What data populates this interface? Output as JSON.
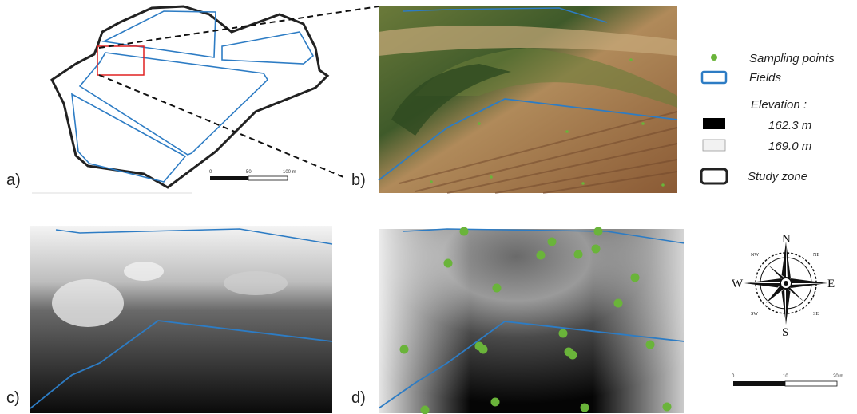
{
  "panel_labels": [
    "a)",
    "b)",
    "c)",
    "d)"
  ],
  "scale_bar_a": {
    "ticks": [
      "0",
      "50",
      "100 m"
    ]
  },
  "scale_bar_d": {
    "ticks": [
      "0",
      "10",
      "20 m"
    ]
  },
  "legend": {
    "sampling_points": "Sampling points",
    "fields": "Fields",
    "elevation_title": "Elevation :",
    "elevation_low": "162.3 m",
    "elevation_high": "169.0 m",
    "study_zone": "Study zone"
  },
  "compass": {
    "n": "N",
    "s": "S",
    "e": "E",
    "w": "W",
    "nw": "NW",
    "ne": "NE",
    "sw": "SW",
    "se": "SE"
  }
}
